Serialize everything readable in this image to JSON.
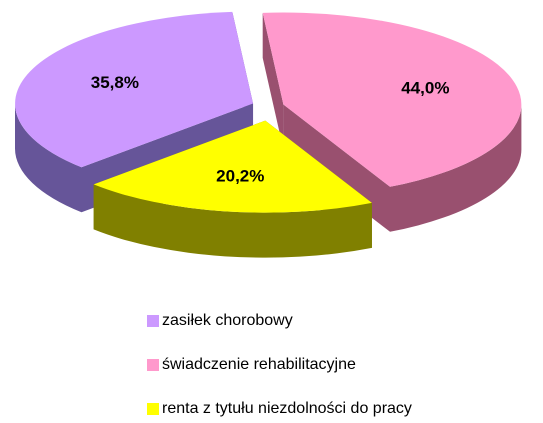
{
  "chart_data": {
    "type": "pie",
    "categories": [
      "zasiłek chorobowy",
      "świadczenie rehabilitacyjne",
      "renta z tytułu niezdolności do pracy"
    ],
    "values": [
      35.8,
      44.0,
      20.2
    ],
    "value_labels": [
      "35,8%",
      "44,0%",
      "20,2%"
    ],
    "colors": [
      "#cc99ff",
      "#ff99cc",
      "#ffff00"
    ],
    "side_colors": [
      "#665599",
      "#99506f",
      "#808000"
    ],
    "legend": "bottom"
  }
}
